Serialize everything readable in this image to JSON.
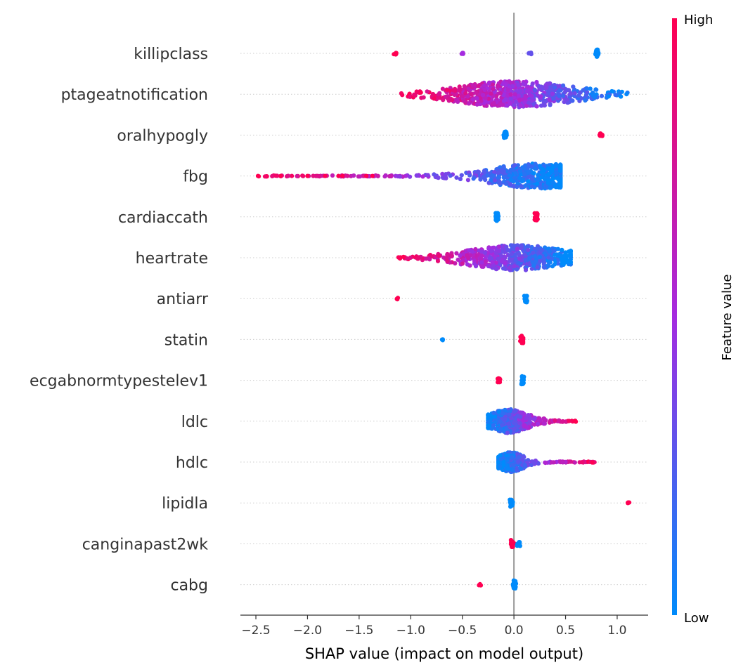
{
  "chart_data": {
    "type": "scatter",
    "subtype": "shap-beeswarm",
    "title": "",
    "xlabel": "SHAP value (impact on model output)",
    "xlim": [
      -2.65,
      1.3
    ],
    "xticks": [
      -2.5,
      -2.0,
      -1.5,
      -1.0,
      -0.5,
      0.0,
      0.5,
      1.0
    ],
    "xtick_labels": [
      "−2.5",
      "−2.0",
      "−1.5",
      "−1.0",
      "−0.5",
      "0.0",
      "0.5",
      "1.0"
    ],
    "zero_line": true,
    "grid": false,
    "colorbar": {
      "label": "Feature value",
      "high_label": "High",
      "low_label": "Low",
      "high_color": "#ff0052",
      "mid_color": "#a52be0",
      "low_color": "#008bfb"
    },
    "features": [
      {
        "name": "killipclass",
        "clusters": [
          {
            "min": -1.17,
            "max": -1.13,
            "count": 6,
            "width": 0.08,
            "color": "high"
          },
          {
            "min": -0.51,
            "max": -0.49,
            "count": 4,
            "width": 0.06,
            "color": "mid"
          },
          {
            "min": 0.14,
            "max": 0.17,
            "count": 6,
            "width": 0.08,
            "color": "midlow"
          },
          {
            "min": 0.79,
            "max": 0.82,
            "count": 30,
            "width": 0.28,
            "color": "low"
          }
        ]
      },
      {
        "name": "ptageatnotification",
        "continuous": {
          "min": -1.1,
          "max": 1.1,
          "peak": 0.0,
          "spread": 0.35,
          "height": 0.95,
          "count": 650,
          "gradient": "high-to-low"
        }
      },
      {
        "name": "oralhypogly",
        "clusters": [
          {
            "min": -0.1,
            "max": -0.07,
            "count": 20,
            "width": 0.26,
            "color": "low"
          },
          {
            "min": 0.83,
            "max": 0.86,
            "count": 10,
            "width": 0.12,
            "color": "high"
          }
        ]
      },
      {
        "name": "fbg",
        "continuous": {
          "min": -2.48,
          "max": 0.45,
          "peak": 0.25,
          "spread": 0.3,
          "height": 0.9,
          "count": 600,
          "gradient": "high-to-low",
          "outliers": [
            -2.48,
            -2.26,
            -2.0,
            -1.83,
            -1.7,
            -1.66,
            -1.43,
            -1.37
          ]
        }
      },
      {
        "name": "cardiaccath",
        "clusters": [
          {
            "min": -0.18,
            "max": -0.15,
            "count": 24,
            "width": 0.3,
            "color": "low"
          },
          {
            "min": 0.2,
            "max": 0.23,
            "count": 20,
            "width": 0.28,
            "color": "high"
          }
        ]
      },
      {
        "name": "heartrate",
        "continuous": {
          "min": -1.13,
          "max": 0.55,
          "peak": 0.03,
          "spread": 0.3,
          "height": 0.9,
          "count": 550,
          "gradient": "high-to-low"
        }
      },
      {
        "name": "antiarr",
        "clusters": [
          {
            "min": -1.14,
            "max": -1.12,
            "count": 4,
            "width": 0.06,
            "color": "high"
          },
          {
            "min": 0.1,
            "max": 0.13,
            "count": 22,
            "width": 0.28,
            "color": "low"
          }
        ]
      },
      {
        "name": "statin",
        "clusters": [
          {
            "min": -0.7,
            "max": -0.68,
            "count": 4,
            "width": 0.06,
            "color": "low"
          },
          {
            "min": 0.06,
            "max": 0.09,
            "count": 22,
            "width": 0.28,
            "color": "high"
          }
        ]
      },
      {
        "name": "ecgabnormtypestelev1",
        "clusters": [
          {
            "min": -0.16,
            "max": -0.13,
            "count": 12,
            "width": 0.16,
            "color": "high"
          },
          {
            "min": 0.07,
            "max": 0.1,
            "count": 24,
            "width": 0.3,
            "color": "low"
          }
        ]
      },
      {
        "name": "ldlc",
        "continuous": {
          "min": -0.25,
          "max": 0.6,
          "peak": -0.05,
          "spread": 0.12,
          "height": 0.85,
          "count": 450,
          "gradient": "low-to-high"
        }
      },
      {
        "name": "hdlc",
        "continuous": {
          "min": -0.15,
          "max": 0.8,
          "peak": -0.03,
          "spread": 0.08,
          "height": 0.7,
          "count": 400,
          "gradient": "low-to-high"
        }
      },
      {
        "name": "lipidla",
        "clusters": [
          {
            "min": -0.04,
            "max": -0.01,
            "count": 22,
            "width": 0.28,
            "color": "low"
          },
          {
            "min": 1.1,
            "max": 1.12,
            "count": 4,
            "width": 0.06,
            "color": "high"
          }
        ]
      },
      {
        "name": "canginapast2wk",
        "clusters": [
          {
            "min": -0.03,
            "max": 0.0,
            "count": 22,
            "width": 0.3,
            "color": "high"
          },
          {
            "min": 0.03,
            "max": 0.06,
            "count": 14,
            "width": 0.16,
            "color": "low"
          }
        ]
      },
      {
        "name": "cabg",
        "clusters": [
          {
            "min": -0.34,
            "max": -0.32,
            "count": 4,
            "width": 0.06,
            "color": "high"
          },
          {
            "min": -0.01,
            "max": 0.02,
            "count": 24,
            "width": 0.32,
            "color": "low"
          }
        ]
      }
    ]
  }
}
